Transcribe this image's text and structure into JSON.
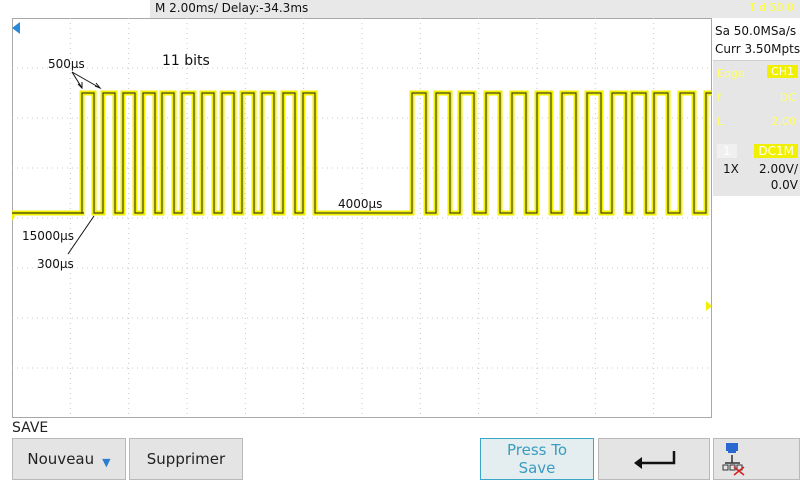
{
  "topbar": {
    "timebase": "M 2.00ms/ Delay:-34.3ms",
    "trigger_status": "T'd  50.0"
  },
  "right_panel": {
    "sample_rate": "Sa 50.0MSa/s",
    "memory_depth": "Curr 3.50Mpts",
    "trigger_type": "Edge",
    "trigger_source": "CH1",
    "trigger_slope": "f",
    "trigger_coupling": "DC",
    "trigger_level_label": "L",
    "trigger_level": "2.00",
    "channel_num": "1",
    "coupling": "DC1M",
    "probe": "1X",
    "vertical_scale": "2.00V/",
    "offset": "0.0V"
  },
  "annotations": {
    "bits": "11 bits",
    "pulse_width": "500µs",
    "start_low": "15000µs",
    "short_low": "300µs",
    "gap": "4000µs"
  },
  "bottom": {
    "menu_title": "SAVE",
    "nouveau_label": "Nouveau",
    "supprimer_label": "Supprimer",
    "press_to_save_line1": "Press To",
    "press_to_save_line2": "Save"
  },
  "colors": {
    "trace": "#f0f000",
    "grid": "#c8c8c8",
    "accent": "#3aa7c8"
  },
  "icons": {
    "trigger_position": "triangle-left-marker",
    "channel_marker": "ch1-ground-marker",
    "trigger_level_marker": "trigger-level-arrow",
    "back": "return-arrow-icon",
    "network": "lan-icon"
  }
}
